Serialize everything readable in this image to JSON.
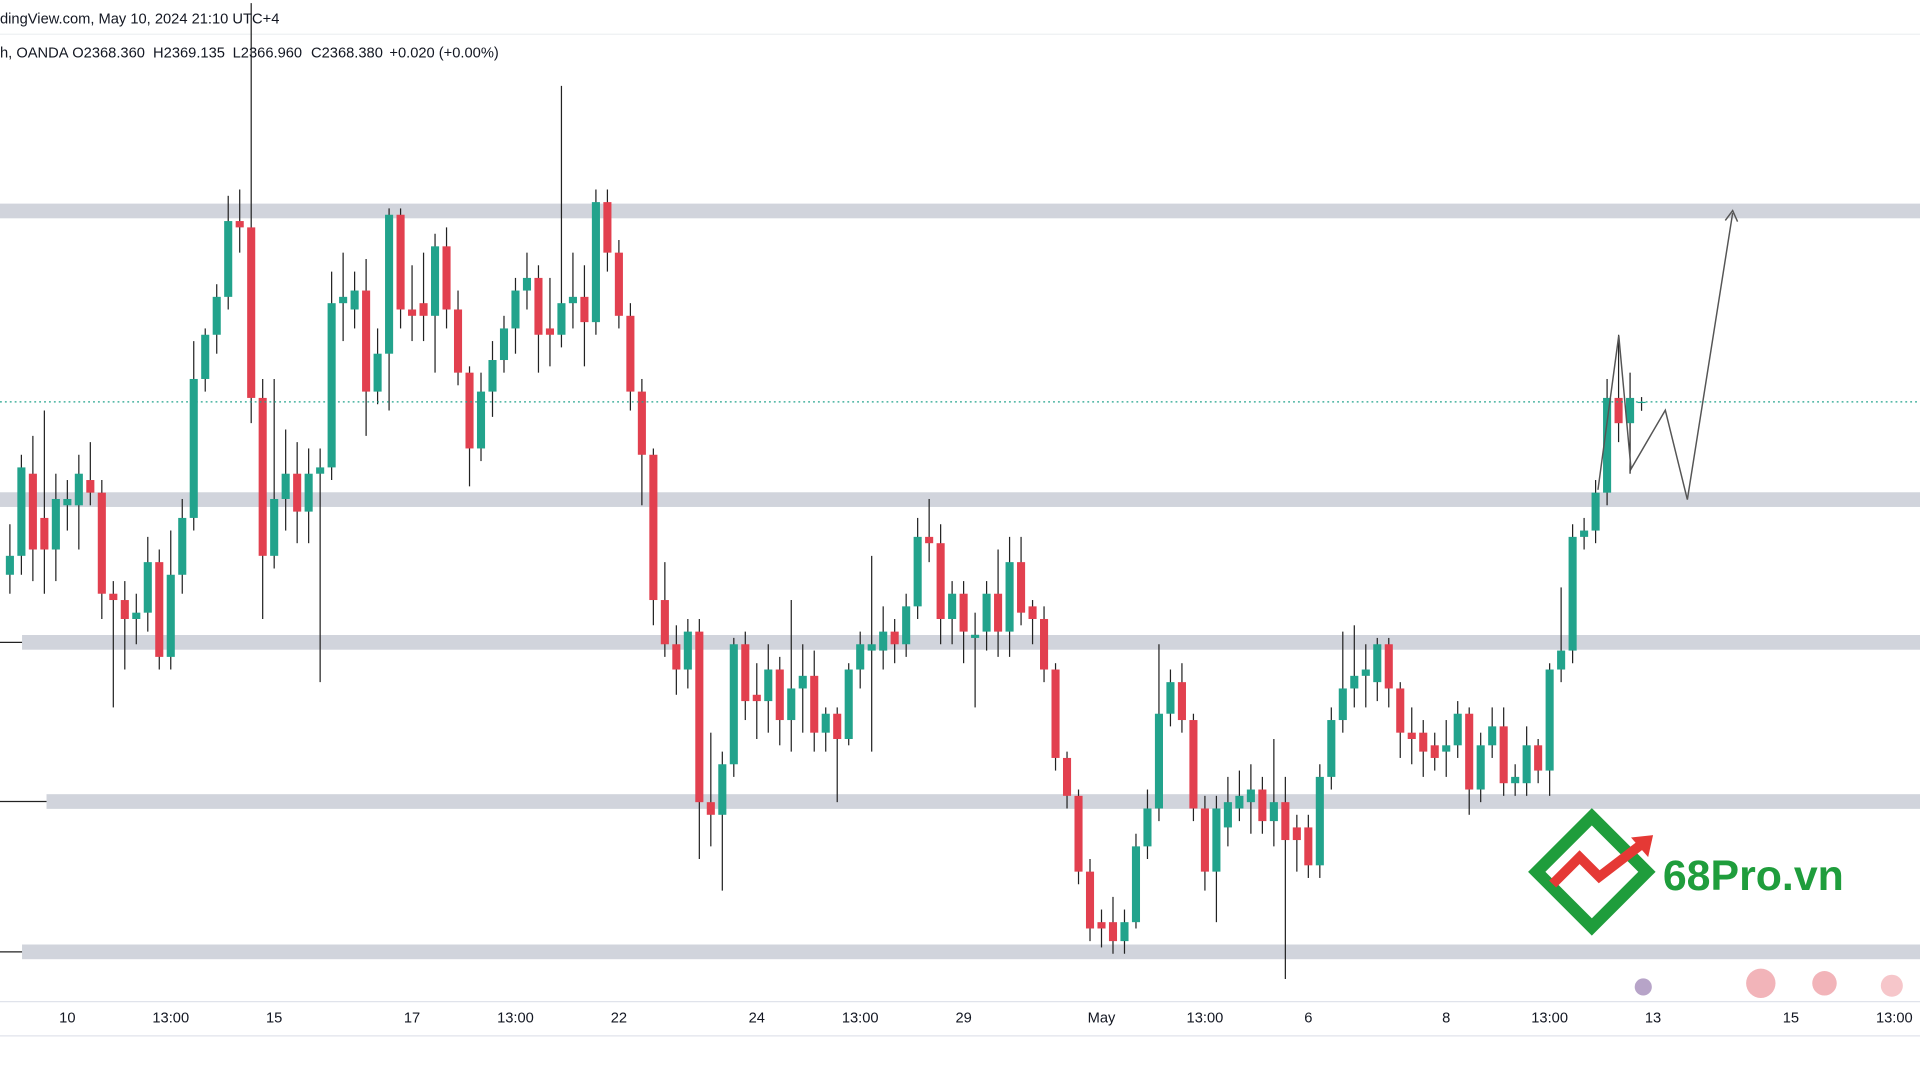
{
  "header": {
    "source": "dingView.com, May 10, 2024 21:10 UTC+4",
    "symbol": "h, OANDA",
    "open": "O2368.360",
    "high": "H2369.135",
    "low": "L2366.960",
    "close": "C2368.380",
    "change": "+0.020 (+0.00%)"
  },
  "watermark": "68Pro.vn",
  "chart_data": {
    "type": "candlestick",
    "up_color": "#22a38c",
    "down_color": "#e2404f",
    "wick_color": "#222222",
    "ylim": [
      2274,
      2432
    ],
    "levels": [
      2398.6,
      2352.9,
      2330.3,
      2305.1,
      2281.3
    ],
    "categories": [
      null,
      null,
      null,
      null,
      null,
      "10",
      null,
      null,
      null,
      null,
      null,
      null,
      null,
      null,
      "13:00",
      null,
      null,
      null,
      null,
      null,
      null,
      null,
      null,
      "15",
      null,
      null,
      null,
      null,
      null,
      null,
      null,
      null,
      null,
      null,
      null,
      "17",
      null,
      null,
      null,
      null,
      null,
      null,
      null,
      null,
      "13:00",
      null,
      null,
      null,
      null,
      null,
      null,
      null,
      null,
      "22",
      null,
      null,
      null,
      null,
      null,
      null,
      null,
      null,
      null,
      null,
      null,
      "24",
      null,
      null,
      null,
      null,
      null,
      null,
      null,
      null,
      "13:00",
      null,
      null,
      null,
      null,
      null,
      null,
      null,
      null,
      "29",
      null,
      null,
      null,
      null,
      null,
      null,
      null,
      null,
      null,
      null,
      null,
      "May",
      null,
      null,
      null,
      null,
      null,
      null,
      null,
      null,
      "13:00",
      null,
      null,
      null,
      null,
      null,
      null,
      null,
      null,
      "6",
      null,
      null,
      null,
      null,
      null,
      null,
      null,
      null,
      null,
      null,
      null,
      "8",
      null,
      null,
      null,
      null,
      null,
      null,
      null,
      null,
      "13:00",
      null,
      null,
      null,
      null,
      null,
      null,
      null,
      null,
      "13",
      null,
      null,
      null,
      null,
      null,
      null,
      null,
      null,
      null,
      null,
      null,
      "15",
      null,
      null,
      null,
      null,
      null,
      null,
      null,
      null,
      "13:00",
      null,
      null
    ],
    "open": [
      2341,
      2344,
      2357,
      2350,
      2345,
      2352,
      2352,
      2356,
      2354,
      2338,
      2337,
      2334,
      2335,
      2343,
      2328,
      2341,
      2350,
      2372,
      2379,
      2385,
      2397,
      2396,
      2369,
      2344,
      2353,
      2357,
      2351,
      2357,
      2358,
      2384,
      2383,
      2386,
      2370,
      2376,
      2398,
      2383,
      2384,
      2382,
      2393,
      2383,
      2373,
      2361,
      2370,
      2375,
      2380,
      2386,
      2388,
      2380,
      2379,
      2384,
      2385,
      2381,
      2400,
      2392,
      2382,
      2370,
      2360,
      2337,
      2330,
      2326,
      2332,
      2305,
      2303,
      2311,
      2330,
      2322,
      2321,
      2326,
      2318,
      2323,
      2325,
      2316,
      2319,
      2315,
      2326,
      2329,
      2329,
      2332,
      2330,
      2336,
      2347,
      2346,
      2334,
      2338,
      2331,
      2332,
      2338,
      2332,
      2343,
      2336,
      2334,
      2326,
      2312,
      2306,
      2294,
      2286,
      2286,
      2283,
      2286,
      2298,
      2304,
      2319,
      2324,
      2318,
      2304,
      2294,
      2301,
      2304,
      2305,
      2307,
      2302,
      2305,
      2301,
      2301,
      2295,
      2309,
      2318,
      2323,
      2325,
      2324,
      2330,
      2323,
      2316,
      2316,
      2314,
      2313,
      2314,
      2319,
      2307,
      2314,
      2317,
      2308,
      2308,
      2314,
      2310,
      2326,
      2329,
      2347,
      2348,
      2354,
      2369,
      2365,
      2368.36,
      null,
      null,
      null,
      null,
      null,
      null,
      null,
      null,
      null,
      null,
      null,
      null,
      null,
      null,
      null,
      null,
      null,
      null,
      null,
      null,
      null,
      null,
      null,
      null
    ],
    "high": [
      2349,
      2360,
      2363,
      2367,
      2357,
      2356,
      2360,
      2362,
      2356,
      2340,
      2340,
      2338,
      2347,
      2345,
      2348,
      2353,
      2378,
      2380,
      2387,
      2401,
      2402,
      2431.5,
      2372,
      2372,
      2364,
      2362,
      2361,
      2361,
      2389,
      2392,
      2389,
      2391,
      2380,
      2399,
      2399,
      2390,
      2392,
      2395,
      2396,
      2386,
      2374,
      2373,
      2378,
      2382,
      2388,
      2392,
      2390,
      2388,
      2418.4,
      2392,
      2390,
      2402,
      2402,
      2394,
      2384,
      2372,
      2361,
      2343,
      2333,
      2334,
      2334,
      2316,
      2313,
      2331,
      2332,
      2327,
      2330,
      2328,
      2337,
      2330,
      2329,
      2320,
      2320,
      2327,
      2332,
      2344,
      2336,
      2334,
      2338,
      2350,
      2353,
      2349,
      2340,
      2340,
      2335,
      2340,
      2345,
      2347,
      2347,
      2337,
      2336,
      2327,
      2313,
      2307,
      2296,
      2288,
      2290,
      2288,
      2300,
      2307,
      2330,
      2326,
      2327,
      2319,
      2306,
      2306,
      2309,
      2310,
      2311,
      2309,
      2315,
      2309,
      2303,
      2303,
      2311,
      2320,
      2332,
      2333,
      2330,
      2331,
      2331,
      2324,
      2320,
      2318,
      2316,
      2318,
      2321,
      2320,
      2316,
      2320,
      2320,
      2311,
      2317,
      2315,
      2327,
      2339,
      2349,
      2350,
      2356,
      2372,
      2379,
      2373,
      2369.135,
      null,
      null,
      null,
      null,
      null,
      null,
      null,
      null,
      null,
      null,
      null,
      null,
      null,
      null,
      null,
      null,
      null,
      null,
      null,
      null,
      null,
      null,
      null,
      null
    ],
    "low": [
      2338,
      2341,
      2340,
      2338,
      2340,
      2348,
      2345,
      2352,
      2334,
      2320,
      2326,
      2330,
      2332,
      2326,
      2326,
      2338,
      2348,
      2370,
      2376,
      2383,
      2392,
      2365,
      2334,
      2342,
      2348,
      2346,
      2346,
      2324,
      2356,
      2378,
      2380,
      2363,
      2368,
      2367,
      2380,
      2378,
      2378,
      2373,
      2380,
      2371,
      2355,
      2359,
      2366,
      2373,
      2376,
      2383,
      2373,
      2374,
      2377,
      2380,
      2374,
      2379,
      2389,
      2380,
      2367,
      2352,
      2333,
      2328,
      2322,
      2323,
      2296,
      2298,
      2291,
      2309,
      2318,
      2315,
      2316,
      2314,
      2313,
      2316,
      2313,
      2313,
      2305,
      2314,
      2323,
      2313,
      2326,
      2327,
      2328,
      2334,
      2343,
      2330,
      2330,
      2327,
      2320,
      2329,
      2328,
      2328,
      2333,
      2330,
      2324,
      2310,
      2304,
      2292,
      2283,
      2282,
      2281,
      2281,
      2285,
      2296,
      2302,
      2317,
      2316,
      2302,
      2291,
      2286,
      2298,
      2302,
      2300,
      2300,
      2298,
      2277,
      2294,
      2293,
      2293,
      2307,
      2316,
      2320,
      2320,
      2321,
      2320,
      2312,
      2311,
      2309,
      2310,
      2309,
      2312,
      2303,
      2305,
      2312,
      2306,
      2306,
      2306,
      2308,
      2306,
      2324,
      2327,
      2345,
      2346,
      2352,
      2362,
      2357,
      2366.96,
      null,
      null,
      null,
      null,
      null,
      null,
      null,
      null,
      null,
      null,
      null,
      null,
      null,
      null,
      null,
      null,
      null,
      null,
      null,
      null,
      null,
      null,
      null,
      null
    ],
    "close": [
      2344,
      2358,
      2345,
      2345,
      2353,
      2353,
      2357,
      2354,
      2338,
      2337,
      2334,
      2335,
      2343,
      2328,
      2341,
      2350,
      2372,
      2379,
      2385,
      2397,
      2396,
      2369,
      2344,
      2353,
      2357,
      2351,
      2357,
      2358,
      2384,
      2385,
      2386,
      2370,
      2376,
      2398,
      2383,
      2382,
      2382,
      2393,
      2383,
      2373,
      2361,
      2370,
      2375,
      2380,
      2386,
      2388,
      2379,
      2379,
      2384,
      2385,
      2381,
      2400,
      2392,
      2382,
      2370,
      2360,
      2337,
      2330,
      2326,
      2332,
      2305,
      2303,
      2311,
      2330,
      2321,
      2321,
      2326,
      2318,
      2323,
      2325,
      2316,
      2319,
      2315,
      2326,
      2330,
      2330,
      2332,
      2330,
      2336,
      2347,
      2346,
      2334,
      2338,
      2332,
      2331.5,
      2338,
      2332,
      2343,
      2335,
      2334,
      2326,
      2312,
      2306,
      2294,
      2285,
      2285,
      2283,
      2286,
      2298,
      2304,
      2319,
      2324,
      2318,
      2304,
      2294,
      2304,
      2305,
      2306,
      2307,
      2302,
      2305,
      2299,
      2299,
      2295,
      2309,
      2318,
      2323,
      2325,
      2326,
      2330,
      2323,
      2316,
      2315,
      2313,
      2312,
      2314,
      2319,
      2307,
      2314,
      2317,
      2308,
      2309,
      2314,
      2310,
      2326,
      2329,
      2347,
      2348,
      2354,
      2369,
      2365,
      2369,
      2368.38,
      null,
      null,
      null,
      null,
      null,
      null,
      null,
      null,
      null,
      null,
      null,
      null,
      null,
      null,
      null,
      null,
      null,
      null,
      null,
      null,
      null,
      null,
      null,
      null
    ]
  }
}
